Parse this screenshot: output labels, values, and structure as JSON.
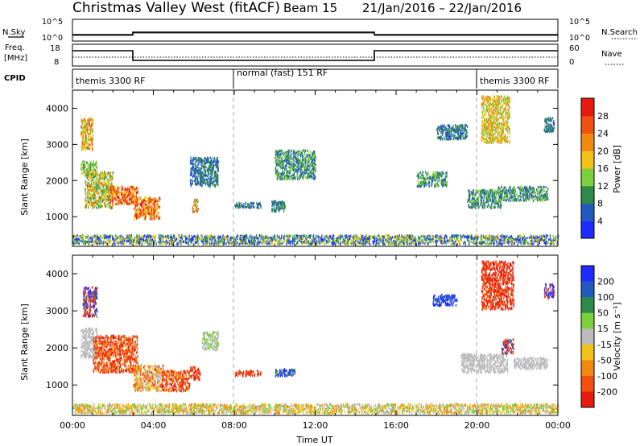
{
  "title": {
    "station": "Christmas Valley West (fitACF)",
    "beam": "Beam 15",
    "date_range": "21/Jan/2016 – 22/Jan/2016"
  },
  "noise_panel": {
    "left_label": "N.Sky",
    "right_label": "N.Search",
    "left_ticks": [
      "10^5",
      "10^0"
    ],
    "right_ticks": [
      "10^5",
      "10^0"
    ]
  },
  "freq_panel": {
    "left_label_1": "Freq.",
    "left_label_2": "[MHz]",
    "right_label": "Nave",
    "left_ticks": [
      "18",
      "8"
    ],
    "right_ticks": [
      "60",
      "0"
    ]
  },
  "cpid_panel": {
    "label": "CPID",
    "segments": [
      {
        "text": "themis 3300 RF",
        "start_hour": 0
      },
      {
        "text": "normal (fast) 151 RF",
        "start_hour": 8
      },
      {
        "text": "themis 3300 RF",
        "start_hour": 20
      }
    ]
  },
  "chart_data": [
    {
      "type": "heatmap",
      "name": "power",
      "ylabel": "Slant Range [km]",
      "xlabel": "",
      "xlim_hours": [
        0,
        24
      ],
      "ylim_km": [
        180,
        4500
      ],
      "yticks": [
        "1000",
        "2000",
        "3000",
        "4000"
      ],
      "colorbar": {
        "title": "Power [dB]",
        "levels": [
          "4",
          "8",
          "12",
          "16",
          "20",
          "24",
          "28"
        ],
        "colors": [
          "#1e2cff",
          "#235ac0",
          "#2c8a4a",
          "#7dcf3c",
          "#f2c21a",
          "#f28a12",
          "#f05010",
          "#e81a10"
        ]
      },
      "scatter_regions": [
        {
          "t0": 0.4,
          "t1": 1.0,
          "r0": 2800,
          "r1": 3700,
          "c": [
            3,
            4,
            5,
            6
          ]
        },
        {
          "t0": 0.4,
          "t1": 1.2,
          "r0": 2100,
          "r1": 2500,
          "c": [
            2,
            3,
            4
          ]
        },
        {
          "t0": 0.6,
          "t1": 2.0,
          "r0": 1200,
          "r1": 2200,
          "c": [
            2,
            3,
            4,
            5
          ]
        },
        {
          "t0": 1.8,
          "t1": 3.2,
          "r0": 1300,
          "r1": 1800,
          "c": [
            4,
            5,
            6,
            7
          ]
        },
        {
          "t0": 3.0,
          "t1": 4.3,
          "r0": 900,
          "r1": 1500,
          "c": [
            5,
            6,
            7,
            4
          ]
        },
        {
          "t0": 5.9,
          "t1": 6.2,
          "r0": 1100,
          "r1": 1450,
          "c": [
            3,
            5,
            6
          ]
        },
        {
          "t0": 5.8,
          "t1": 7.2,
          "r0": 1800,
          "r1": 2600,
          "c": [
            1,
            2
          ]
        },
        {
          "t0": 8.0,
          "t1": 9.3,
          "r0": 1200,
          "r1": 1350,
          "c": [
            1,
            2
          ]
        },
        {
          "t0": 10.0,
          "t1": 12.0,
          "r0": 2000,
          "r1": 2800,
          "c": [
            1,
            2,
            3
          ]
        },
        {
          "t0": 9.8,
          "t1": 10.5,
          "r0": 1100,
          "r1": 1400,
          "c": [
            1,
            2
          ]
        },
        {
          "t0": 17.0,
          "t1": 18.5,
          "r0": 1800,
          "r1": 2200,
          "c": [
            1,
            2,
            3
          ]
        },
        {
          "t0": 18.0,
          "t1": 19.5,
          "r0": 3100,
          "r1": 3500,
          "c": [
            1,
            2
          ]
        },
        {
          "t0": 19.5,
          "t1": 21.2,
          "r0": 1200,
          "r1": 1700,
          "c": [
            1,
            2,
            3
          ]
        },
        {
          "t0": 20.2,
          "t1": 21.6,
          "r0": 3000,
          "r1": 4300,
          "c": [
            3,
            4,
            5
          ]
        },
        {
          "t0": 21.0,
          "t1": 23.5,
          "r0": 1400,
          "r1": 1800,
          "c": [
            1,
            2,
            3
          ]
        },
        {
          "t0": 23.3,
          "t1": 23.8,
          "r0": 3300,
          "r1": 3700,
          "c": [
            1,
            2
          ]
        },
        {
          "t0": 0.0,
          "t1": 24.0,
          "r0": 200,
          "r1": 450,
          "c": [
            0,
            1,
            2,
            3,
            4
          ]
        }
      ]
    },
    {
      "type": "heatmap",
      "name": "velocity",
      "ylabel": "Slant Range [km]",
      "xlabel": "Time UT",
      "xlim_hours": [
        0,
        24
      ],
      "ylim_km": [
        180,
        4500
      ],
      "xticks": [
        "00:00",
        "04:00",
        "08:00",
        "12:00",
        "16:00",
        "20:00",
        "00:00"
      ],
      "yticks": [
        "1000",
        "2000",
        "3000",
        "4000"
      ],
      "colorbar": {
        "title": "Velocity [m s⁻¹]",
        "levels": [
          "200",
          "100",
          "50",
          "15",
          "-15",
          "-50",
          "-100",
          "-200"
        ],
        "colors": [
          "#1e2cff",
          "#235ac0",
          "#2c8a4a",
          "#7dcf3c",
          "#bbbbbb",
          "#f2c21a",
          "#f28a12",
          "#f05010",
          "#e81a10"
        ]
      },
      "scatter_regions": [
        {
          "t0": 0.5,
          "t1": 1.2,
          "r0": 2800,
          "r1": 3600,
          "c": [
            0,
            1,
            7,
            8
          ]
        },
        {
          "t0": 0.4,
          "t1": 1.2,
          "r0": 1700,
          "r1": 2500,
          "c": [
            4
          ]
        },
        {
          "t0": 1.0,
          "t1": 3.2,
          "r0": 1300,
          "r1": 2300,
          "c": [
            7,
            8,
            6
          ]
        },
        {
          "t0": 3.0,
          "t1": 4.5,
          "r0": 800,
          "r1": 1500,
          "c": [
            5,
            6,
            7,
            4
          ]
        },
        {
          "t0": 4.4,
          "t1": 5.8,
          "r0": 800,
          "r1": 1350,
          "c": [
            6,
            7,
            8
          ]
        },
        {
          "t0": 5.8,
          "t1": 6.3,
          "r0": 1100,
          "r1": 1450,
          "c": [
            7,
            8
          ]
        },
        {
          "t0": 6.4,
          "t1": 7.2,
          "r0": 1900,
          "r1": 2400,
          "c": [
            3,
            4
          ]
        },
        {
          "t0": 8.0,
          "t1": 9.3,
          "r0": 1200,
          "r1": 1350,
          "c": [
            7,
            8
          ]
        },
        {
          "t0": 10.0,
          "t1": 11.0,
          "r0": 1200,
          "r1": 1400,
          "c": [
            0,
            1,
            2
          ]
        },
        {
          "t0": 17.8,
          "t1": 19.0,
          "r0": 3100,
          "r1": 3400,
          "c": [
            0,
            1
          ]
        },
        {
          "t0": 19.2,
          "t1": 21.5,
          "r0": 1300,
          "r1": 1800,
          "c": [
            4
          ]
        },
        {
          "t0": 20.2,
          "t1": 21.8,
          "r0": 3000,
          "r1": 4300,
          "c": [
            7,
            8
          ]
        },
        {
          "t0": 21.2,
          "t1": 21.8,
          "r0": 1800,
          "r1": 2200,
          "c": [
            7,
            8,
            1
          ]
        },
        {
          "t0": 21.8,
          "t1": 23.5,
          "r0": 1400,
          "r1": 1700,
          "c": [
            4
          ]
        },
        {
          "t0": 23.3,
          "t1": 23.8,
          "r0": 3300,
          "r1": 3700,
          "c": [
            0,
            7
          ]
        },
        {
          "t0": 0.0,
          "t1": 24.0,
          "r0": 200,
          "r1": 450,
          "c": [
            3,
            4,
            5,
            6
          ]
        }
      ]
    }
  ]
}
